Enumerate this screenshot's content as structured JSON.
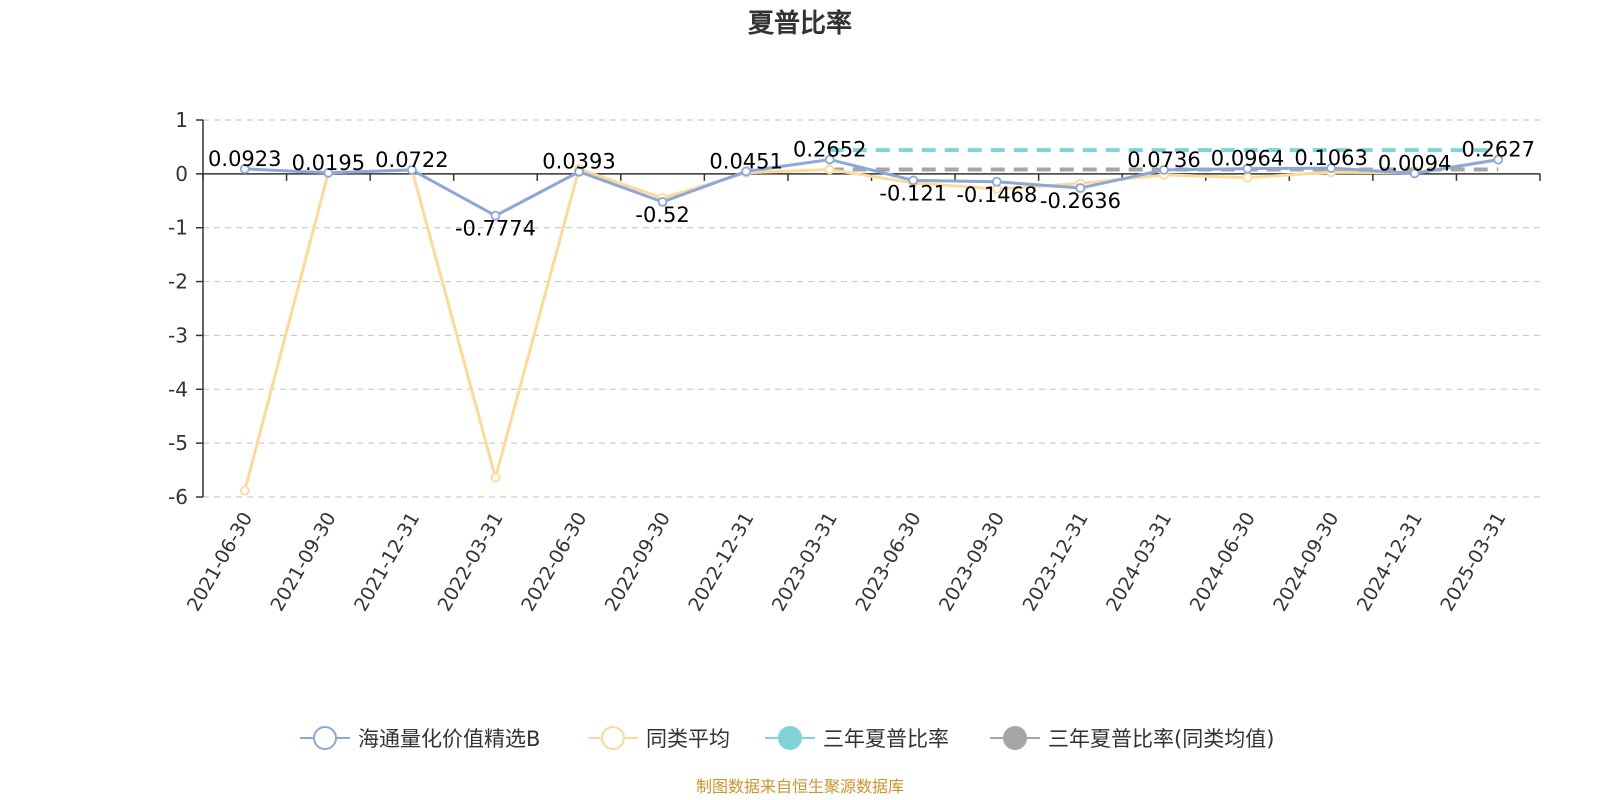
{
  "chart_data": {
    "type": "line",
    "title": "夏普比率",
    "categories": [
      "2021-06-30",
      "2021-09-30",
      "2021-12-31",
      "2022-03-31",
      "2022-06-30",
      "2022-09-30",
      "2022-12-31",
      "2023-03-31",
      "2023-06-30",
      "2023-09-30",
      "2023-12-31",
      "2024-03-31",
      "2024-06-30",
      "2024-09-30",
      "2024-12-31",
      "2025-03-31"
    ],
    "ylim": [
      -6,
      1
    ],
    "yticks": [
      1,
      0,
      -1,
      -2,
      -3,
      -4,
      -5,
      -6
    ],
    "grid": true,
    "legend_position": "bottom",
    "series": [
      {
        "name": "海通量化价值精选B",
        "color": "#8ba8d8",
        "values": [
          0.0923,
          0.0195,
          0.0722,
          -0.7774,
          0.0393,
          -0.52,
          0.0451,
          0.2652,
          -0.121,
          -0.1468,
          -0.2636,
          0.0736,
          0.0964,
          0.1063,
          0.0094,
          0.2627
        ],
        "labels": [
          "0.0923",
          "0.0195",
          "0.0722",
          "-0.7774",
          "0.0393",
          "-0.52",
          "0.0451",
          "0.2652",
          "-0.121",
          "-0.1468",
          "-0.2636",
          "0.0736",
          "0.0964",
          "0.1063",
          "0.0094",
          "0.2627"
        ]
      },
      {
        "name": "同类平均",
        "color": "#fdd99b",
        "values": [
          -5.88,
          0.02,
          0.08,
          -5.64,
          0.09,
          -0.45,
          0.02,
          0.08,
          -0.17,
          -0.28,
          -0.18,
          -0.02,
          -0.07,
          0.03,
          0.02,
          0.27
        ]
      },
      {
        "name": "三年夏普比率",
        "color": "#80d4d8",
        "dashed": true,
        "x_range": [
          "2023-03-31",
          "2025-03-31"
        ],
        "value": 0.44
      },
      {
        "name": "三年夏普比率(同类均值)",
        "color": "#a6a6a6",
        "dashed": true,
        "x_range": [
          "2023-03-31",
          "2025-03-31"
        ],
        "value": 0.08
      }
    ]
  },
  "footer": {
    "source": "制图数据来自恒生聚源数据库",
    "source_color": "#c9952c"
  }
}
